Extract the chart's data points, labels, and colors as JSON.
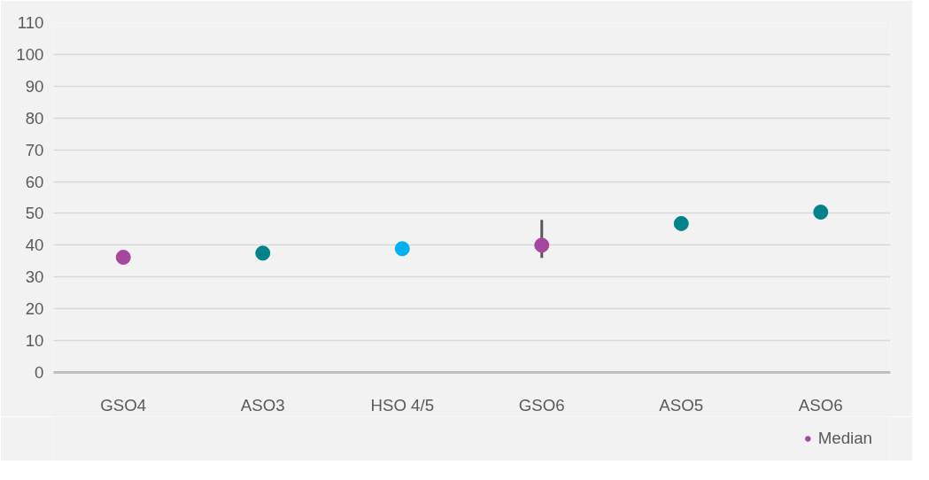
{
  "chart_data": {
    "type": "scatter",
    "categories": [
      "GSO4",
      "ASO3",
      "HSO 4/5",
      "GSO6",
      "ASO5",
      "ASO6"
    ],
    "series": [
      {
        "name": "Median",
        "color": "#a5479f",
        "colors": [
          "#a5479f",
          "#00828a",
          "#00b0f0",
          "#a5479f",
          "#00828a",
          "#00828a"
        ],
        "values": [
          36.2,
          37.5,
          38.9,
          40,
          46.8,
          50.4
        ],
        "errors": [
          null,
          null,
          null,
          [
            36,
            48
          ],
          null,
          null
        ]
      }
    ],
    "ylim": [
      0,
      110
    ],
    "yticks": [
      0,
      10,
      20,
      30,
      40,
      50,
      60,
      70,
      80,
      90,
      100,
      110
    ],
    "grid": "y",
    "legend": "bottom right",
    "marker": "circle"
  }
}
